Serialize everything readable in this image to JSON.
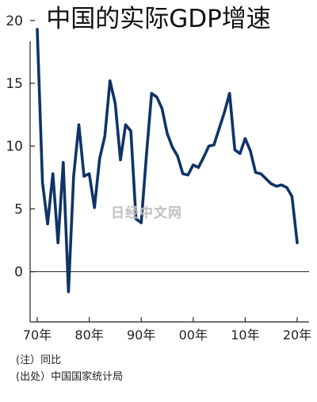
{
  "chart_data": {
    "type": "line",
    "title": "中国的实际GDP增速",
    "xlabel": "",
    "ylabel": "",
    "x": [
      1970,
      1971,
      1972,
      1973,
      1974,
      1975,
      1976,
      1977,
      1978,
      1979,
      1980,
      1981,
      1982,
      1983,
      1984,
      1985,
      1986,
      1987,
      1988,
      1989,
      1990,
      1991,
      1992,
      1993,
      1994,
      1995,
      1996,
      1997,
      1998,
      1999,
      2000,
      2001,
      2002,
      2003,
      2004,
      2005,
      2006,
      2007,
      2008,
      2009,
      2010,
      2011,
      2012,
      2013,
      2014,
      2015,
      2016,
      2017,
      2018,
      2019,
      2020
    ],
    "y": [
      19.3,
      7.1,
      3.8,
      7.8,
      2.3,
      8.7,
      -1.6,
      7.6,
      11.7,
      7.6,
      7.8,
      5.1,
      9.0,
      10.8,
      15.2,
      13.4,
      8.9,
      11.7,
      11.2,
      4.2,
      3.9,
      9.3,
      14.2,
      13.9,
      13.0,
      11.0,
      9.9,
      9.2,
      7.8,
      7.7,
      8.5,
      8.3,
      9.1,
      10.0,
      10.1,
      11.4,
      12.7,
      14.2,
      9.7,
      9.4,
      10.6,
      9.6,
      7.9,
      7.8,
      7.4,
      7.0,
      6.8,
      6.9,
      6.7,
      6.0,
      2.3
    ],
    "xlim": [
      1970,
      2020
    ],
    "ylim": [
      -4,
      21
    ],
    "y_ticks": [
      0,
      5,
      10,
      15,
      20
    ],
    "x_ticks": [
      1970,
      1980,
      1990,
      2000,
      2010,
      2020
    ],
    "x_tick_labels": [
      "70年",
      "80年",
      "90年",
      "00年",
      "10年",
      "20年"
    ],
    "line_color": "#0f3466",
    "axis_color": "#222222",
    "grid": false,
    "notes": [
      "(注）同比",
      "(出处）中国国家统计局"
    ],
    "watermark": "日经中文网"
  }
}
